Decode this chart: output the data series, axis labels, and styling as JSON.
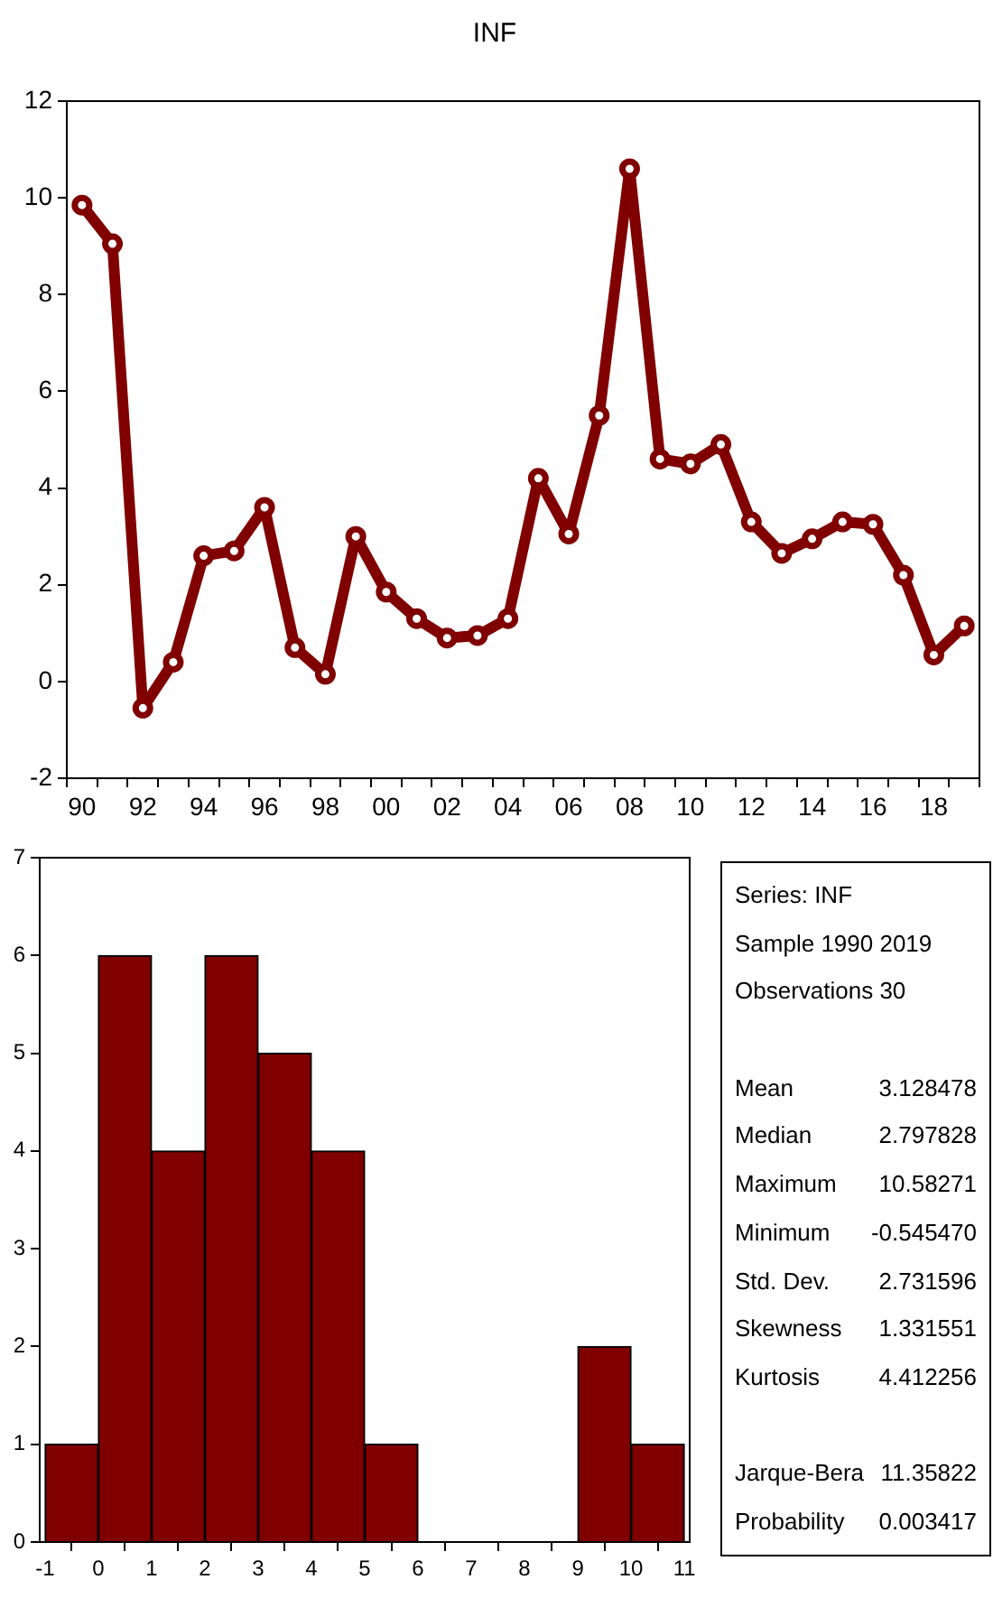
{
  "chart_data": [
    {
      "type": "line",
      "title": "INF",
      "categories": [
        "90",
        null,
        "92",
        null,
        "94",
        null,
        "96",
        null,
        "98",
        null,
        "00",
        null,
        "02",
        null,
        "04",
        null,
        "06",
        null,
        "08",
        null,
        "10",
        null,
        "12",
        null,
        "14",
        null,
        "16",
        null,
        "18",
        null
      ],
      "values": [
        9.85,
        9.05,
        -0.55,
        0.4,
        2.6,
        2.7,
        3.6,
        0.7,
        0.15,
        3.0,
        1.85,
        1.3,
        0.9,
        0.95,
        1.3,
        4.2,
        3.05,
        5.5,
        10.6,
        4.6,
        4.5,
        4.9,
        3.3,
        2.65,
        2.95,
        3.3,
        3.25,
        2.2,
        0.55,
        1.15
      ],
      "color": "#800000",
      "marker": "circle",
      "ylim": [
        -2,
        12
      ],
      "yticks": [
        -2,
        0,
        2,
        4,
        6,
        8,
        10,
        12
      ]
    },
    {
      "type": "histogram",
      "bins": [
        -1,
        0,
        1,
        2,
        3,
        4,
        5,
        6,
        7,
        8,
        9,
        10,
        11
      ],
      "values": [
        1,
        6,
        4,
        6,
        5,
        4,
        1,
        0,
        0,
        0,
        2,
        1
      ],
      "color": "#800000",
      "xlim": [
        -1.1,
        11.1
      ],
      "xticks": [
        -1,
        0,
        1,
        2,
        3,
        4,
        5,
        6,
        7,
        8,
        9,
        10,
        11
      ],
      "ylim": [
        0,
        7
      ],
      "yticks": [
        0,
        1,
        2,
        3,
        4,
        5,
        6,
        7
      ]
    },
    {
      "type": "other",
      "annotations": [
        "Series: INF\nSample 1990 2019\nObservations 30",
        "Mean\t3.128478\nMedian\t2.797828\nMaximum\t10.58271\nMinimum\t-0.545470\nStd. Dev.\t2.731596\nSkewness\t1.331551\nKurtosis\t4.412256",
        "Jarque-Bera\t11.35822\nProbability\t0.003417"
      ]
    }
  ]
}
